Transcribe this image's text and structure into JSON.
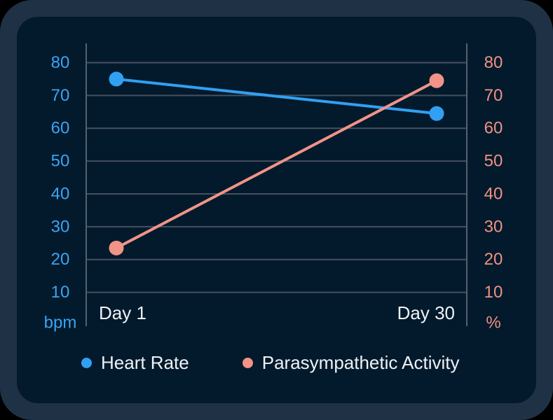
{
  "chart_data": {
    "type": "line",
    "categories": [
      "Day 1",
      "Day 30"
    ],
    "series": [
      {
        "name": "Heart Rate",
        "axis": "left",
        "unit": "bpm",
        "color": "#31a0f3",
        "values": [
          75,
          64.5
        ]
      },
      {
        "name": "Parasympathetic Activity",
        "axis": "right",
        "unit": "%",
        "color": "#f19388",
        "values": [
          23.5,
          74.5
        ]
      }
    ],
    "left_axis": {
      "label": "bpm",
      "ticks": [
        80,
        70,
        60,
        50,
        40,
        30,
        20,
        10
      ],
      "color": "#3aa4f4"
    },
    "right_axis": {
      "label": "%",
      "ticks": [
        80,
        70,
        60,
        50,
        40,
        30,
        20,
        10
      ],
      "color": "#ef9184"
    },
    "ylim": [
      10,
      80
    ],
    "grid": true,
    "legend_position": "bottom"
  },
  "theme": {
    "frame_color": "#1f3245",
    "panel_color": "#031a2c",
    "grid_line_color": "#45505e",
    "axis_line_color": "#55616e",
    "text_color": "#eef2f6"
  }
}
